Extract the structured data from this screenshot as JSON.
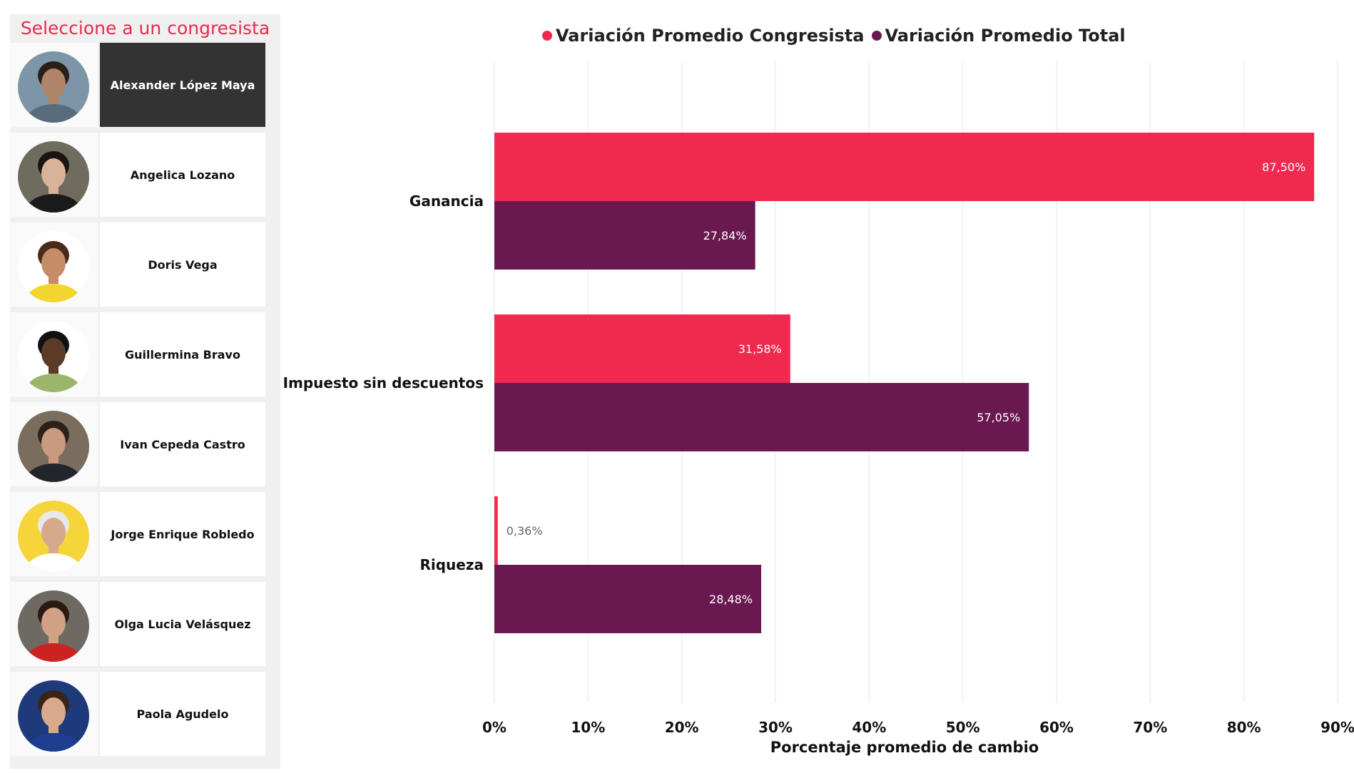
{
  "slicer": {
    "title": "Seleccione a un congresista",
    "selected_index": 0,
    "items": [
      {
        "name": "Alexander López Maya",
        "bg": "#7c96a8",
        "skin": "#b08468",
        "hair": "#2a1e18",
        "cloth": "#5a6b7c"
      },
      {
        "name": "Angelica Lozano",
        "bg": "#6f6b5e",
        "skin": "#d8b39a",
        "hair": "#1c1410",
        "cloth": "#1a1a1a"
      },
      {
        "name": "Doris Vega",
        "bg": "#ffffff",
        "skin": "#c68c68",
        "hair": "#4a2a18",
        "cloth": "#f2d52e"
      },
      {
        "name": "Guillermina Bravo",
        "bg": "#ffffff",
        "skin": "#5b3a28",
        "hair": "#111111",
        "cloth": "#9bb56b"
      },
      {
        "name": "Ivan Cepeda Castro",
        "bg": "#7a6d5e",
        "skin": "#c99a80",
        "hair": "#2b2118",
        "cloth": "#22252b"
      },
      {
        "name": "Jorge Enrique Robledo",
        "bg": "#f5d53a",
        "skin": "#d6a88c",
        "hair": "#e8e8e8",
        "cloth": "#ffffff"
      },
      {
        "name": "Olga Lucia Velásquez",
        "bg": "#6e6a62",
        "skin": "#d0a184",
        "hair": "#2a1a12",
        "cloth": "#cc2222"
      },
      {
        "name": "Paola Agudelo",
        "bg": "#1e3a7a",
        "skin": "#d9a98c",
        "hair": "#3a2418",
        "cloth": "#1d3d8f"
      }
    ]
  },
  "colors": {
    "congresista": "#f0294f",
    "total": "#6a1850",
    "grid": "#e6e6e6",
    "label_outside": "#666666",
    "label_inside": "#ffffff"
  },
  "chart_data": {
    "type": "bar",
    "orientation": "horizontal",
    "categories": [
      "Ganancia",
      "Impuesto sin descuentos",
      "Riqueza"
    ],
    "series": [
      {
        "name": "Variación Promedio Congresista",
        "values": [
          87.5,
          31.58,
          0.36
        ],
        "labels": [
          "87,50%",
          "31,58%",
          "0,36%"
        ]
      },
      {
        "name": "Variación Promedio Total",
        "values": [
          27.84,
          57.05,
          28.48
        ],
        "labels": [
          "27,84%",
          "57,05%",
          "28,48%"
        ]
      }
    ],
    "xlim": [
      0,
      90
    ],
    "xticks": [
      "0%",
      "10%",
      "20%",
      "30%",
      "40%",
      "50%",
      "60%",
      "70%",
      "80%",
      "90%"
    ],
    "xlabel": "Porcentaje promedio de cambio",
    "ylabel": "",
    "grid": true,
    "legend_position": "top"
  }
}
